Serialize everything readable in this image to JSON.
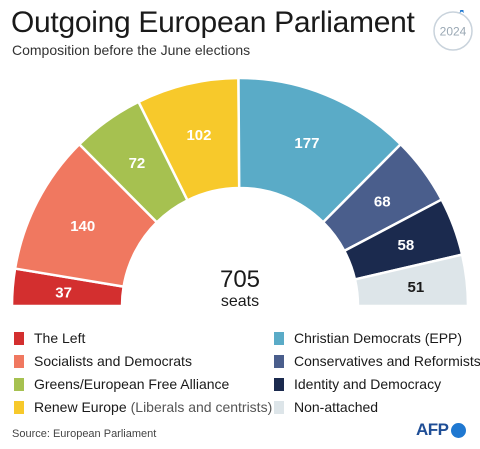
{
  "header": {
    "title": "Outgoing European Parliament",
    "subtitle": "Composition before the June elections",
    "badge_year": "2024"
  },
  "center": {
    "total": "705",
    "unit": "seats"
  },
  "colors": {
    "the_left": "#d32f2f",
    "socialists": "#f07860",
    "greens": "#a6c150",
    "renew": "#f7c92b",
    "epp": "#5aabc7",
    "ecr": "#4a5e8c",
    "id": "#1b2a4e",
    "non_attached": "#dde5e9"
  },
  "chart_data": {
    "type": "pie",
    "subtype": "semicircle",
    "total": 705,
    "series": [
      {
        "name": "The Left",
        "value": 37,
        "color": "#d32f2f",
        "label_color": "#ffffff"
      },
      {
        "name": "Socialists and Democrats",
        "value": 140,
        "color": "#f07860",
        "label_color": "#ffffff"
      },
      {
        "name": "Greens/European Free Alliance",
        "value": 72,
        "color": "#a6c150",
        "label_color": "#ffffff"
      },
      {
        "name": "Renew Europe",
        "value": 102,
        "color": "#f7c92b",
        "label_color": "#ffffff"
      },
      {
        "name": "Christian Democrats (EPP)",
        "value": 177,
        "color": "#5aabc7",
        "label_color": "#ffffff"
      },
      {
        "name": "Conservatives and Reformists",
        "value": 68,
        "color": "#4a5e8c",
        "label_color": "#ffffff"
      },
      {
        "name": "Identity and Democracy",
        "value": 58,
        "color": "#1b2a4e",
        "label_color": "#ffffff"
      },
      {
        "name": "Non-attached",
        "value": 51,
        "color": "#dde5e9",
        "label_color": "#1a1a1a"
      }
    ]
  },
  "legend": [
    {
      "label": "The Left",
      "note": "",
      "color": "#d32f2f"
    },
    {
      "label": "Socialists and Democrats",
      "note": "",
      "color": "#f07860"
    },
    {
      "label": "Greens/European Free Alliance",
      "note": "",
      "color": "#a6c150"
    },
    {
      "label": "Renew Europe",
      "note": "(Liberals and centrists)",
      "color": "#f7c92b"
    },
    {
      "label": "Christian Democrats (EPP)",
      "note": "",
      "color": "#5aabc7"
    },
    {
      "label": "Conservatives and Reformists",
      "note": "",
      "color": "#4a5e8c"
    },
    {
      "label": "Identity and Democracy",
      "note": "",
      "color": "#1b2a4e"
    },
    {
      "label": "Non-attached",
      "note": "",
      "color": "#dde5e9"
    }
  ],
  "footer": {
    "source": "Source: European Parliament",
    "logo_text": "AFP"
  }
}
